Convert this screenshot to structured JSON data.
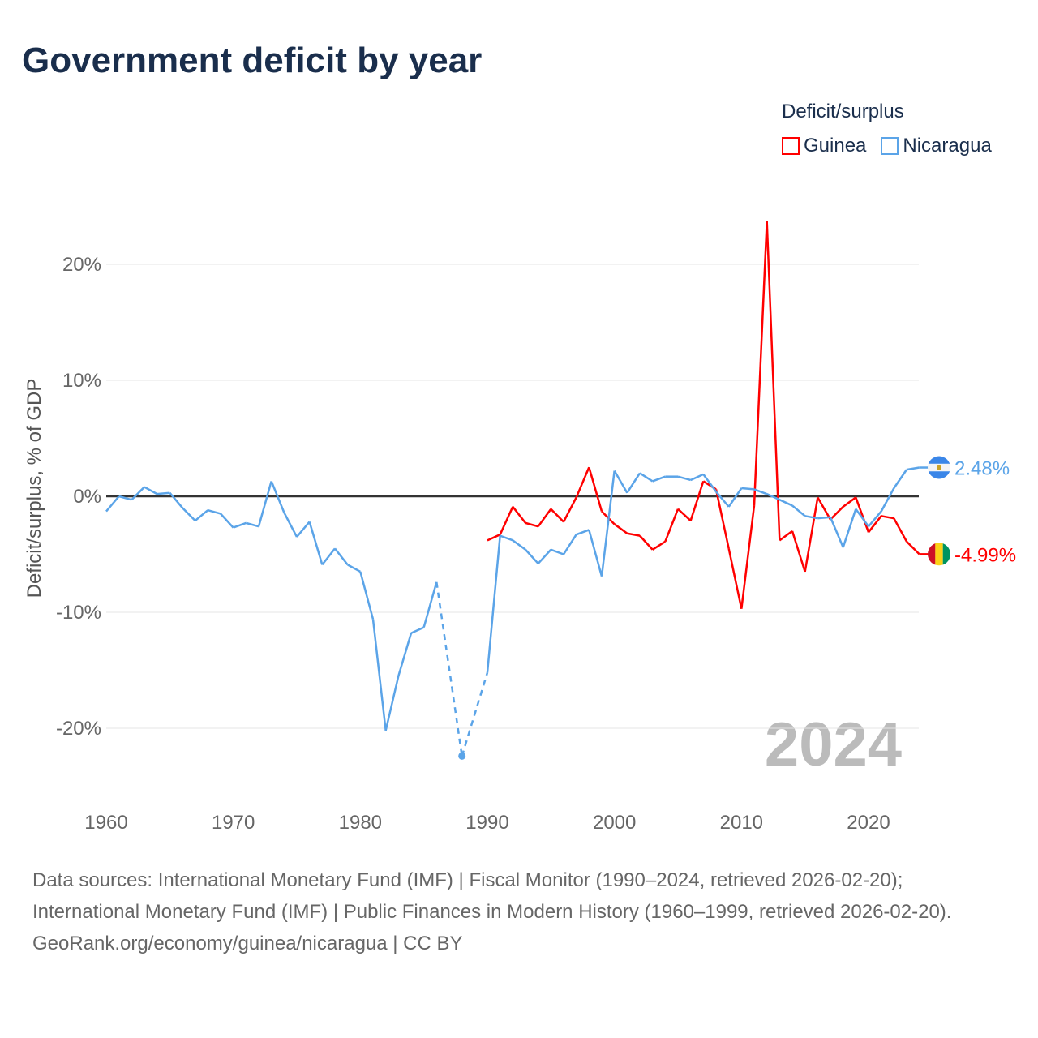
{
  "title": "Government deficit by year",
  "chart_data": {
    "type": "line",
    "title": "Government deficit by year",
    "ylabel": "Deficit/surplus, % of GDP",
    "xlabel": "",
    "legend_title": "Deficit/surplus",
    "legend_placement": "top-right",
    "xlim": [
      1960,
      2024
    ],
    "ylim": [
      -25,
      25
    ],
    "xticks": [
      "1960",
      "1970",
      "1980",
      "1990",
      "2000",
      "2010",
      "2020"
    ],
    "yticks": [
      {
        "v": 20,
        "label": "20%"
      },
      {
        "v": 10,
        "label": "10%"
      },
      {
        "v": 0,
        "label": "0%"
      },
      {
        "v": -10,
        "label": "-10%"
      },
      {
        "v": -20,
        "label": "-20%"
      }
    ],
    "year_label": "2024",
    "series": [
      {
        "name": "Guinea",
        "color": "#ff0000",
        "end_label": "-4.99%",
        "start": 1990,
        "values": [
          -3.8,
          -3.3,
          -0.9,
          -2.3,
          -2.6,
          -1.1,
          -2.2,
          -0.1,
          2.5,
          -1.3,
          -2.4,
          -3.2,
          -3.4,
          -4.6,
          -3.9,
          -1.1,
          -2.1,
          1.3,
          0.6,
          -4.5,
          -9.7,
          -0.8,
          23.7,
          -3.8,
          -3.0,
          -6.5,
          -0.1,
          -2.0,
          -0.9,
          -0.1,
          -3.1,
          -1.7,
          -1.9,
          -3.9,
          -4.99
        ]
      },
      {
        "name": "Nicaragua",
        "color": "#5ba4e8",
        "end_label": "2.48%",
        "start": 1960,
        "values": [
          -1.3,
          0,
          -0.3,
          0.8,
          0.2,
          0.3,
          -1.0,
          -2.1,
          -1.2,
          -1.5,
          -2.7,
          -2.3,
          -2.6,
          1.3,
          -1.4,
          -3.5,
          -2.2,
          -5.9,
          -4.5,
          -5.9,
          -6.5,
          -10.6,
          -20.2,
          -15.5,
          -11.8,
          -11.3,
          -7.4,
          null,
          -22.4,
          null,
          -15.2,
          -3.4,
          -3.8,
          -4.6,
          -5.8,
          -4.6,
          -5.0,
          -3.3,
          -2.9,
          -6.9,
          2.2,
          0.3,
          2.0,
          1.3,
          1.7,
          1.7,
          1.4,
          1.9,
          0.4,
          -0.9,
          0.7,
          0.6,
          0.2,
          -0.3,
          -0.8,
          -1.7,
          -1.9,
          -1.8,
          -4.4,
          -1.1,
          -2.6,
          -1.3,
          0.7,
          2.3,
          2.48
        ]
      }
    ]
  },
  "footer": {
    "sources": "Data sources: International Monetary Fund (IMF) | Fiscal Monitor (1990–2024, retrieved 2026-02-20); International Monetary Fund (IMF) | Public Finances in Modern History (1960–1999, retrieved 2026-02-20).",
    "credit": "GeoRank.org/economy/guinea/nicaragua | CC BY"
  }
}
